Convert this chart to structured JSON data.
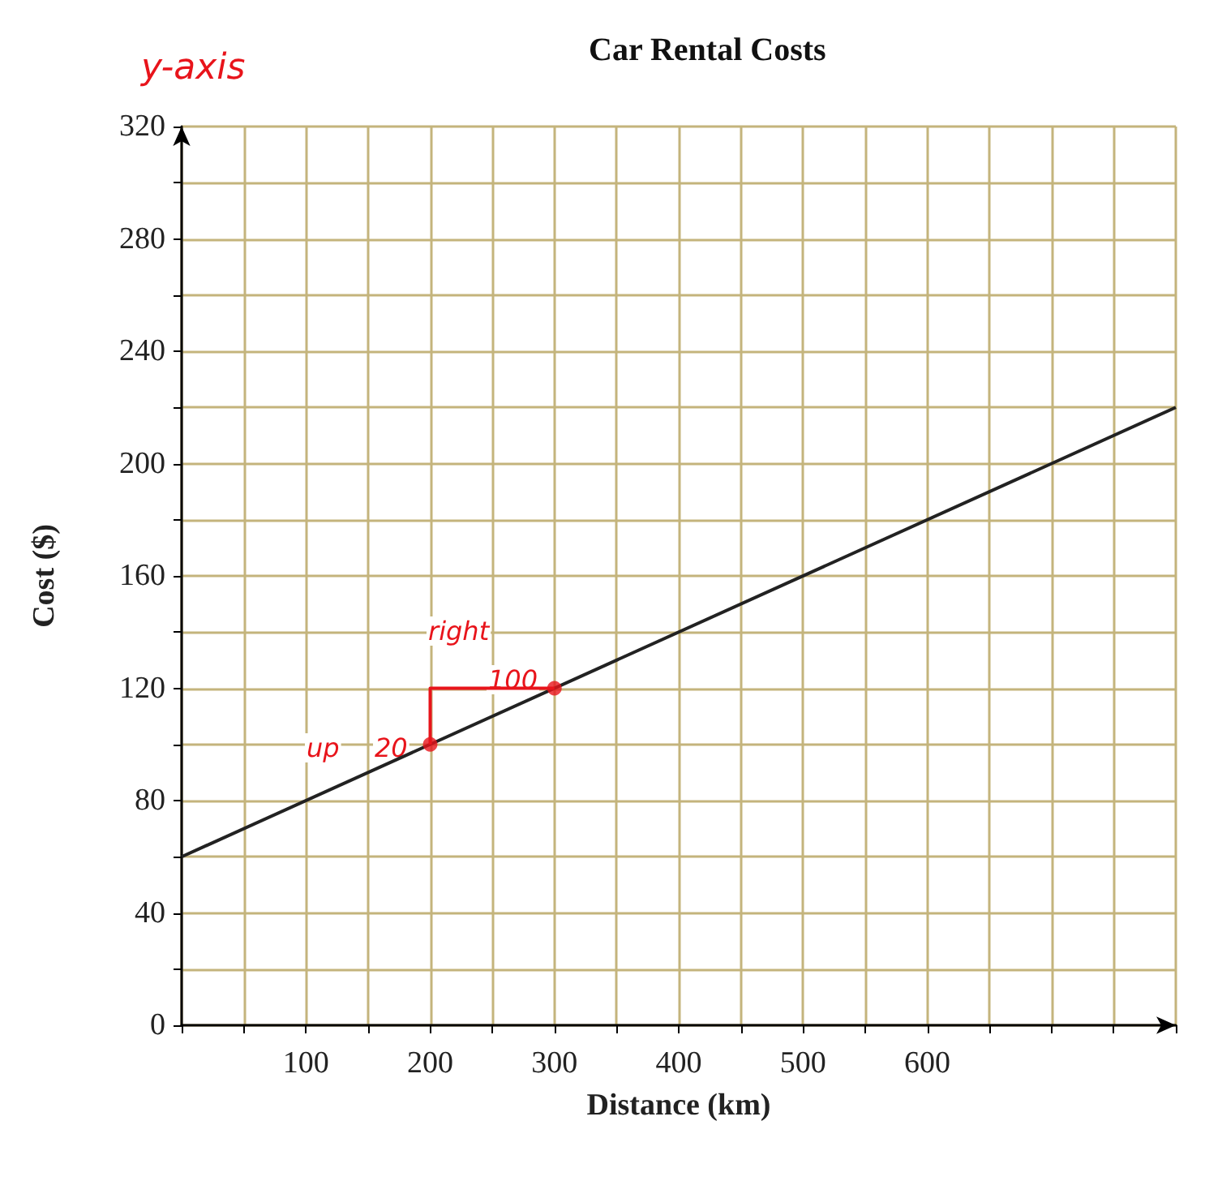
{
  "chart_data": {
    "type": "line",
    "title": "Car Rental Costs",
    "xlabel": "Distance (km)",
    "ylabel": "Cost ($)",
    "xlim": [
      0,
      800
    ],
    "ylim": [
      0,
      320
    ],
    "xticks": [
      {
        "value": 0,
        "label": null
      },
      {
        "value": 50,
        "label": null
      },
      100,
      {
        "value": 150,
        "label": null
      },
      200,
      {
        "value": 250,
        "label": null
      },
      300,
      {
        "value": 350,
        "label": null
      },
      400,
      {
        "value": 450,
        "label": null
      },
      500,
      {
        "value": 550,
        "label": null
      },
      600,
      {
        "value": 650,
        "label": null
      },
      {
        "value": 700,
        "label": null
      },
      {
        "value": 750,
        "label": null
      },
      {
        "value": 800,
        "label": null
      }
    ],
    "yticks": [
      0,
      {
        "value": 20,
        "label": null
      },
      40,
      {
        "value": 60,
        "label": null
      },
      80,
      {
        "value": 100,
        "label": null
      },
      120,
      {
        "value": 140,
        "label": null
      },
      160,
      {
        "value": 180,
        "label": null
      },
      200,
      {
        "value": 220,
        "label": null
      },
      240,
      {
        "value": 260,
        "label": null
      },
      280,
      {
        "value": 300,
        "label": null
      },
      320
    ],
    "grid": true,
    "series": [
      {
        "color": "#222222",
        "x": [
          0,
          800
        ],
        "values": [
          60,
          220
        ],
        "marker": "none"
      },
      {
        "color": "#e8141b",
        "x": [
          200,
          200,
          300
        ],
        "values": [
          100,
          120,
          120
        ],
        "marker": "none"
      },
      {
        "type": "scatter",
        "color": "#e8141b",
        "x": [
          200,
          300
        ],
        "values": [
          100,
          120
        ],
        "marker": "circle"
      }
    ],
    "annotations": [
      "y-axis",
      "right",
      "100",
      "up",
      "20"
    ]
  }
}
